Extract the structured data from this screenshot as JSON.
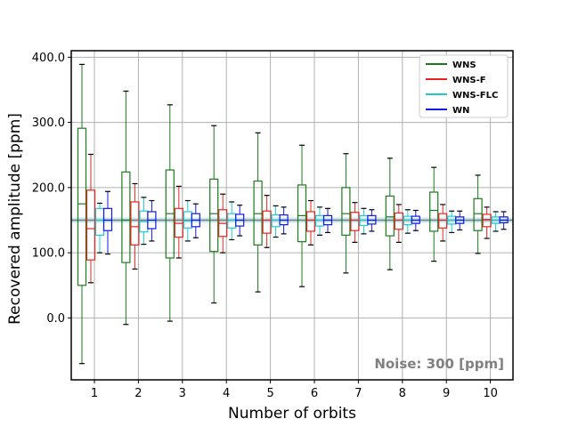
{
  "chart_data": {
    "type": "boxplot",
    "xlabel": "Number of orbits",
    "ylabel": "Recovered amplitude [ppm]",
    "categories": [
      "1",
      "2",
      "3",
      "4",
      "5",
      "6",
      "7",
      "8",
      "9",
      "10"
    ],
    "ylim": [
      -95,
      410
    ],
    "yticks": [
      0,
      100,
      200,
      300,
      400
    ],
    "ytick_labels": [
      "0.0",
      "100.0",
      "200.0",
      "300.0",
      "400.0"
    ],
    "grid": true,
    "legend_position": "top-right",
    "reference_line": {
      "value": 150,
      "color": "#7a7a7a"
    },
    "reference_band": {
      "low": 146,
      "high": 154,
      "color": "#b9e4ea"
    },
    "annotation": "Noise: 300 [ppm]",
    "series": [
      {
        "name": "WNS",
        "color": "#1b7a1b",
        "boxes": [
          {
            "whislo": -70,
            "q1": 50,
            "med": 175,
            "q3": 291,
            "whishi": 389
          },
          {
            "whislo": -10,
            "q1": 85,
            "med": 150,
            "q3": 224,
            "whishi": 348
          },
          {
            "whislo": -5,
            "q1": 92,
            "med": 160,
            "q3": 227,
            "whishi": 327
          },
          {
            "whislo": 23,
            "q1": 102,
            "med": 160,
            "q3": 213,
            "whishi": 295
          },
          {
            "whislo": 40,
            "q1": 112,
            "med": 160,
            "q3": 210,
            "whishi": 284
          },
          {
            "whislo": 48,
            "q1": 117,
            "med": 157,
            "q3": 204,
            "whishi": 265
          },
          {
            "whislo": 69,
            "q1": 127,
            "med": 160,
            "q3": 200,
            "whishi": 252
          },
          {
            "whislo": 74,
            "q1": 126,
            "med": 155,
            "q3": 187,
            "whishi": 245
          },
          {
            "whislo": 87,
            "q1": 133,
            "med": 165,
            "q3": 193,
            "whishi": 231
          },
          {
            "whislo": 99,
            "q1": 134,
            "med": 160,
            "q3": 183,
            "whishi": 219
          }
        ]
      },
      {
        "name": "WNS-F",
        "color": "#e8251e",
        "boxes": [
          {
            "whislo": 54,
            "q1": 89,
            "med": 137,
            "q3": 196,
            "whishi": 251
          },
          {
            "whislo": 75,
            "q1": 112,
            "med": 140,
            "q3": 178,
            "whishi": 206
          },
          {
            "whislo": 92,
            "q1": 124,
            "med": 145,
            "q3": 168,
            "whishi": 202
          },
          {
            "whislo": 100,
            "q1": 125,
            "med": 145,
            "q3": 166,
            "whishi": 190
          },
          {
            "whislo": 108,
            "q1": 130,
            "med": 150,
            "q3": 164,
            "whishi": 188
          },
          {
            "whislo": 112,
            "q1": 133,
            "med": 150,
            "q3": 163,
            "whishi": 180
          },
          {
            "whislo": 116,
            "q1": 134,
            "med": 150,
            "q3": 162,
            "whishi": 177
          },
          {
            "whislo": 116,
            "q1": 136,
            "med": 150,
            "q3": 161,
            "whishi": 174
          },
          {
            "whislo": 118,
            "q1": 138,
            "med": 150,
            "q3": 160,
            "whishi": 174
          },
          {
            "whislo": 122,
            "q1": 140,
            "med": 151,
            "q3": 159,
            "whishi": 170
          }
        ]
      },
      {
        "name": "WNS-FLC",
        "color": "#1ec8d2",
        "boxes": [
          {
            "whislo": 100,
            "q1": 127,
            "med": 150,
            "q3": 168,
            "whishi": 176
          },
          {
            "whislo": 113,
            "q1": 132,
            "med": 148,
            "q3": 164,
            "whishi": 185
          },
          {
            "whislo": 118,
            "q1": 138,
            "med": 149,
            "q3": 163,
            "whishi": 180
          },
          {
            "whislo": 120,
            "q1": 138,
            "med": 150,
            "q3": 160,
            "whishi": 178
          },
          {
            "whislo": 124,
            "q1": 140,
            "med": 150,
            "q3": 158,
            "whishi": 172
          },
          {
            "whislo": 127,
            "q1": 141,
            "med": 150,
            "q3": 157,
            "whishi": 170
          },
          {
            "whislo": 129,
            "q1": 142,
            "med": 150,
            "q3": 157,
            "whishi": 168
          },
          {
            "whislo": 130,
            "q1": 143,
            "med": 150,
            "q3": 156,
            "whishi": 166
          },
          {
            "whislo": 131,
            "q1": 144,
            "med": 150,
            "q3": 156,
            "whishi": 164
          },
          {
            "whislo": 133,
            "q1": 145,
            "med": 150,
            "q3": 155,
            "whishi": 163
          }
        ]
      },
      {
        "name": "WN",
        "color": "#1515e6",
        "boxes": [
          {
            "whislo": 98,
            "q1": 134,
            "med": 150,
            "q3": 168,
            "whishi": 194
          },
          {
            "whislo": 118,
            "q1": 137,
            "med": 150,
            "q3": 163,
            "whishi": 180
          },
          {
            "whislo": 123,
            "q1": 140,
            "med": 150,
            "q3": 160,
            "whishi": 175
          },
          {
            "whislo": 126,
            "q1": 141,
            "med": 150,
            "q3": 159,
            "whishi": 173
          },
          {
            "whislo": 129,
            "q1": 143,
            "med": 150,
            "q3": 158,
            "whishi": 170
          },
          {
            "whislo": 131,
            "q1": 143,
            "med": 150,
            "q3": 157,
            "whishi": 168
          },
          {
            "whislo": 133,
            "q1": 144,
            "med": 150,
            "q3": 157,
            "whishi": 166
          },
          {
            "whislo": 134,
            "q1": 145,
            "med": 150,
            "q3": 156,
            "whishi": 165
          },
          {
            "whislo": 135,
            "q1": 145,
            "med": 150,
            "q3": 155,
            "whishi": 164
          },
          {
            "whislo": 136,
            "q1": 146,
            "med": 150,
            "q3": 155,
            "whishi": 163
          }
        ]
      }
    ]
  }
}
